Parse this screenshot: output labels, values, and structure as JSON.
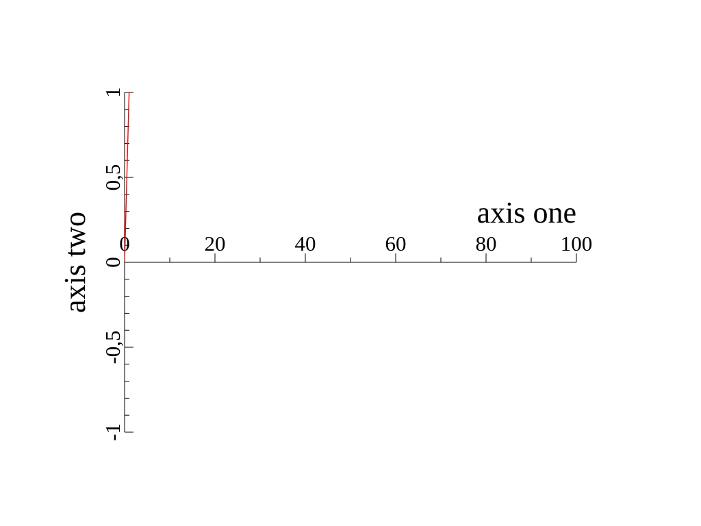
{
  "chart_data": {
    "type": "line",
    "xlabel": "axis one",
    "ylabel": "axis two",
    "xlim": [
      0,
      100
    ],
    "ylim": [
      -1,
      1
    ],
    "x_ticks": [
      {
        "value": 0,
        "label": "0"
      },
      {
        "value": 20,
        "label": "20"
      },
      {
        "value": 40,
        "label": "40"
      },
      {
        "value": 60,
        "label": "60"
      },
      {
        "value": 80,
        "label": "80"
      },
      {
        "value": 100,
        "label": "100"
      }
    ],
    "x_minor_ticks": [
      10,
      30,
      50,
      70,
      90
    ],
    "y_ticks": [
      {
        "value": -1,
        "label": "-1"
      },
      {
        "value": -0.5,
        "label": "-0,5"
      },
      {
        "value": 0,
        "label": "0"
      },
      {
        "value": 0.5,
        "label": "0,5"
      },
      {
        "value": 1,
        "label": "1"
      }
    ],
    "y_minor_ticks": [
      -0.9,
      -0.8,
      -0.7,
      -0.6,
      -0.4,
      -0.3,
      -0.2,
      -0.1,
      0.1,
      0.2,
      0.3,
      0.4,
      0.6,
      0.7,
      0.8,
      0.9
    ],
    "grid": false,
    "legend": "none",
    "series": [
      {
        "color": "#ff0000",
        "x": [
          0,
          1
        ],
        "y": [
          0,
          1
        ]
      }
    ]
  }
}
